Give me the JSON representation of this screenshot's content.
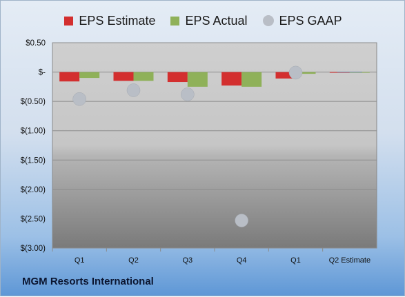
{
  "chart_data": {
    "type": "bar",
    "categories": [
      "Q1",
      "Q2",
      "Q3",
      "Q4",
      "Q1",
      "Q2 Estimate"
    ],
    "series": [
      {
        "name": "EPS Estimate",
        "kind": "bar",
        "color": "#d32f2f",
        "values": [
          -0.16,
          -0.15,
          -0.17,
          -0.23,
          -0.11,
          0
        ]
      },
      {
        "name": "EPS Actual",
        "kind": "bar",
        "color": "#8fb159",
        "values": [
          -0.1,
          -0.15,
          -0.25,
          -0.25,
          -0.03,
          0
        ]
      },
      {
        "name": "EPS GAAP",
        "kind": "dot",
        "color": "#b9bec6",
        "values": [
          -0.46,
          -0.31,
          -0.38,
          -2.53,
          -0.01,
          null
        ]
      }
    ],
    "yticks": [
      "$0.50",
      "$-",
      "$(0.50)",
      "$(1.00)",
      "$(1.50)",
      "$(2.00)",
      "$(2.50)",
      "$(3.00)"
    ],
    "yticks_values": [
      0.5,
      0,
      -0.5,
      -1.0,
      -1.5,
      -2.0,
      -2.5,
      -3.0
    ],
    "ylim": [
      -3.0,
      0.5
    ],
    "grid": true,
    "legend_position": "top"
  },
  "footer": {
    "company": "MGM Resorts International"
  }
}
